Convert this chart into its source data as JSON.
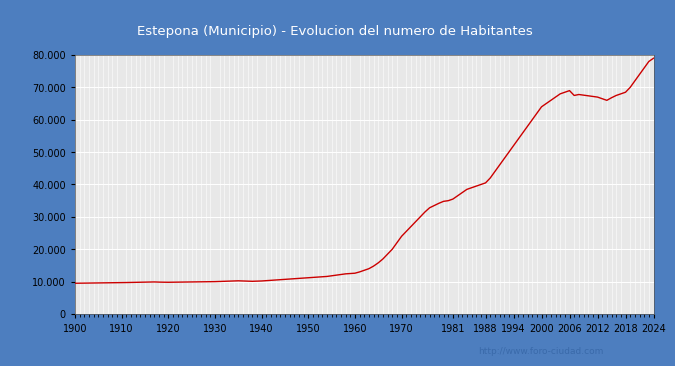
{
  "title": "Estepona (Municipio) - Evolucion del numero de Habitantes",
  "title_bg_color": "#4d7ebf",
  "title_text_color": "#ffffff",
  "plot_bg_color": "#e8e8e8",
  "line_color": "#cc0000",
  "grid_color": "#ffffff",
  "axis_bg_color": "#e8e8e8",
  "outer_bg_color": "#4d7ebf",
  "url_text": "http://www.foro-ciudad.com",
  "url_color": "#3a6aaa",
  "yticks": [
    0,
    10000,
    20000,
    30000,
    40000,
    50000,
    60000,
    70000,
    80000
  ],
  "xtick_labels": [
    "1900",
    "1910",
    "1920",
    "1930",
    "1940",
    "1950",
    "1960",
    "1970",
    "1981",
    "1988",
    "1994",
    "2000",
    "2006",
    "2012",
    "2018",
    "2024"
  ],
  "data": {
    "1900": 9500,
    "1901": 9520,
    "1902": 9540,
    "1903": 9560,
    "1904": 9580,
    "1905": 9600,
    "1906": 9620,
    "1907": 9640,
    "1908": 9660,
    "1909": 9680,
    "1910": 9700,
    "1911": 9720,
    "1912": 9750,
    "1913": 9780,
    "1914": 9810,
    "1915": 9840,
    "1916": 9870,
    "1917": 9900,
    "1918": 9850,
    "1919": 9820,
    "1920": 9800,
    "1921": 9820,
    "1922": 9840,
    "1923": 9860,
    "1924": 9880,
    "1925": 9900,
    "1926": 9920,
    "1927": 9940,
    "1928": 9960,
    "1929": 9980,
    "1930": 10000,
    "1931": 10050,
    "1932": 10100,
    "1933": 10150,
    "1934": 10200,
    "1935": 10250,
    "1936": 10200,
    "1937": 10150,
    "1938": 10100,
    "1939": 10150,
    "1940": 10200,
    "1941": 10300,
    "1942": 10400,
    "1943": 10500,
    "1944": 10600,
    "1945": 10700,
    "1946": 10800,
    "1947": 10900,
    "1948": 11000,
    "1949": 11100,
    "1950": 11200,
    "1951": 11300,
    "1952": 11400,
    "1953": 11500,
    "1954": 11600,
    "1955": 11800,
    "1956": 12000,
    "1957": 12200,
    "1958": 12400,
    "1959": 12500,
    "1960": 12600,
    "1961": 13000,
    "1962": 13500,
    "1963": 14000,
    "1964": 14800,
    "1965": 15800,
    "1966": 17000,
    "1967": 18500,
    "1968": 20000,
    "1969": 22000,
    "1970": 24000,
    "1971": 25500,
    "1972": 27000,
    "1973": 28500,
    "1974": 30000,
    "1975": 31500,
    "1976": 32800,
    "1977": 33500,
    "1978": 34200,
    "1979": 34800,
    "1980": 35000,
    "1981": 35500,
    "1982": 36500,
    "1983": 37500,
    "1984": 38500,
    "1985": 39000,
    "1986": 39500,
    "1987": 40000,
    "1988": 40500,
    "1989": 42000,
    "1990": 44000,
    "1991": 46000,
    "1992": 48000,
    "1993": 50000,
    "1994": 52000,
    "1995": 54000,
    "1996": 56000,
    "1997": 58000,
    "1998": 60000,
    "1999": 62000,
    "2000": 64000,
    "2001": 65000,
    "2002": 66000,
    "2003": 67000,
    "2004": 68000,
    "2005": 68500,
    "2006": 69000,
    "2007": 67500,
    "2008": 67800,
    "2009": 67600,
    "2010": 67400,
    "2011": 67200,
    "2012": 67000,
    "2013": 66500,
    "2014": 66000,
    "2015": 66800,
    "2016": 67500,
    "2017": 68000,
    "2018": 68500,
    "2019": 70000,
    "2020": 72000,
    "2021": 74000,
    "2022": 76000,
    "2023": 78000,
    "2024": 79000
  }
}
